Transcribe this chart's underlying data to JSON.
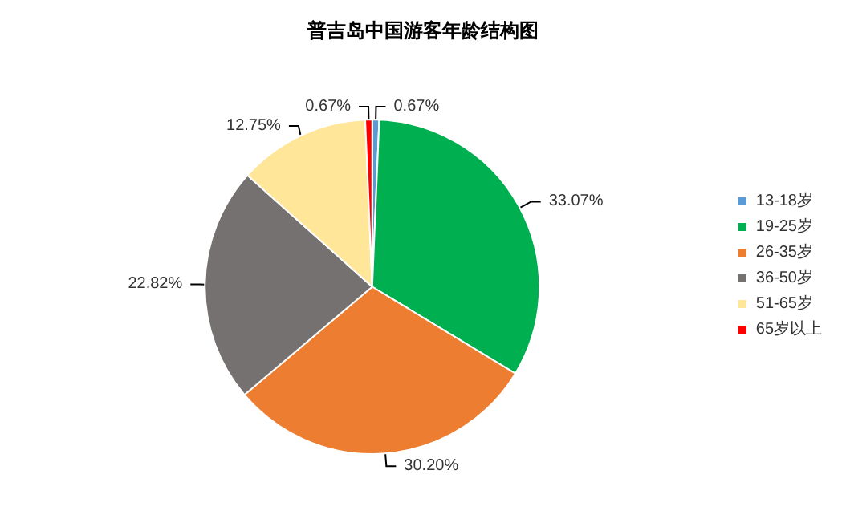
{
  "chart_data": {
    "type": "pie",
    "title": "普吉岛中国游客年龄结构图",
    "categories": [
      "13-18岁",
      "19-25岁",
      "26-35岁",
      "36-50岁",
      "51-65岁",
      "65岁以上"
    ],
    "values": [
      0.67,
      33.07,
      30.2,
      22.82,
      12.75,
      0.67
    ],
    "colors": [
      "#5b9bd5",
      "#00b050",
      "#ed7d31",
      "#767171",
      "#ffe699",
      "#ff0000"
    ],
    "value_labels": [
      "0.67%",
      "33.07%",
      "30.20%",
      "22.82%",
      "12.75%",
      "0.67%"
    ],
    "legend": "right"
  }
}
